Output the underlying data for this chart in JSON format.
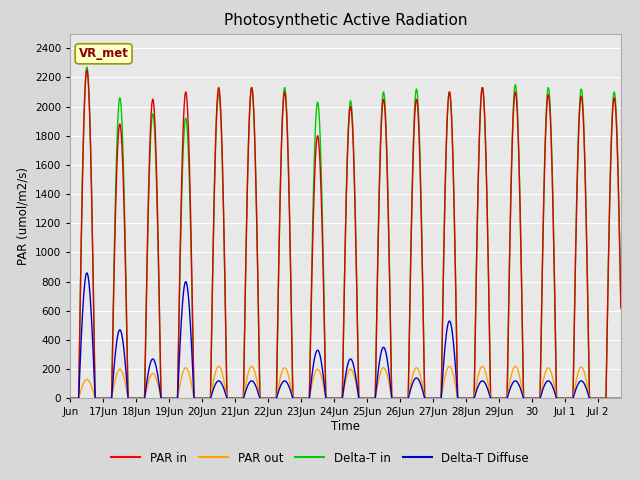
{
  "title": "Photosynthetic Active Radiation",
  "ylabel": "PAR (umol/m2/s)",
  "xlabel": "Time",
  "ylim": [
    0,
    2500
  ],
  "background_color": "#d8d8d8",
  "plot_bg_color": "#e8e8e8",
  "legend_labels": [
    "PAR in",
    "PAR out",
    "Delta-T in",
    "Delta-T Diffuse"
  ],
  "legend_colors": [
    "#ff0000",
    "#ffa500",
    "#00cc00",
    "#0000cc"
  ],
  "annotation_text": "VR_met",
  "annotation_box_color": "#ffffcc",
  "annotation_text_color": "#8b0000",
  "series_colors": {
    "par_in": "#dd0000",
    "par_out": "#ffa500",
    "delta_t_in": "#00cc00",
    "delta_t_diffuse": "#0000cc"
  },
  "tick_labels": [
    "Jun",
    "17Jun",
    "18Jun",
    "19Jun",
    "20Jun",
    "21Jun",
    "22Jun",
    "23Jun",
    "24Jun",
    "25Jun",
    "26Jun",
    "27Jun",
    "28Jun",
    "29Jun",
    "30",
    "Jul 1",
    "Jul 2"
  ],
  "day_peaks_par_in": [
    2250,
    1880,
    2050,
    2100,
    2130,
    2130,
    2100,
    1800,
    2000,
    2050,
    2050,
    2100,
    2130,
    2100,
    2080,
    2070,
    2060
  ],
  "day_peaks_delta_t_in": [
    2270,
    2060,
    1950,
    1920,
    2090,
    2130,
    2130,
    2030,
    2040,
    2100,
    2120,
    2100,
    2130,
    2150,
    2130,
    2120,
    2100
  ],
  "day_peaks_par_out": [
    130,
    200,
    170,
    210,
    220,
    220,
    210,
    200,
    200,
    210,
    210,
    220,
    220,
    220,
    210,
    215,
    0
  ],
  "day_peaks_diffuse": [
    860,
    470,
    270,
    800,
    120,
    120,
    120,
    330,
    270,
    350,
    140,
    530,
    120,
    120,
    120,
    120,
    0
  ]
}
